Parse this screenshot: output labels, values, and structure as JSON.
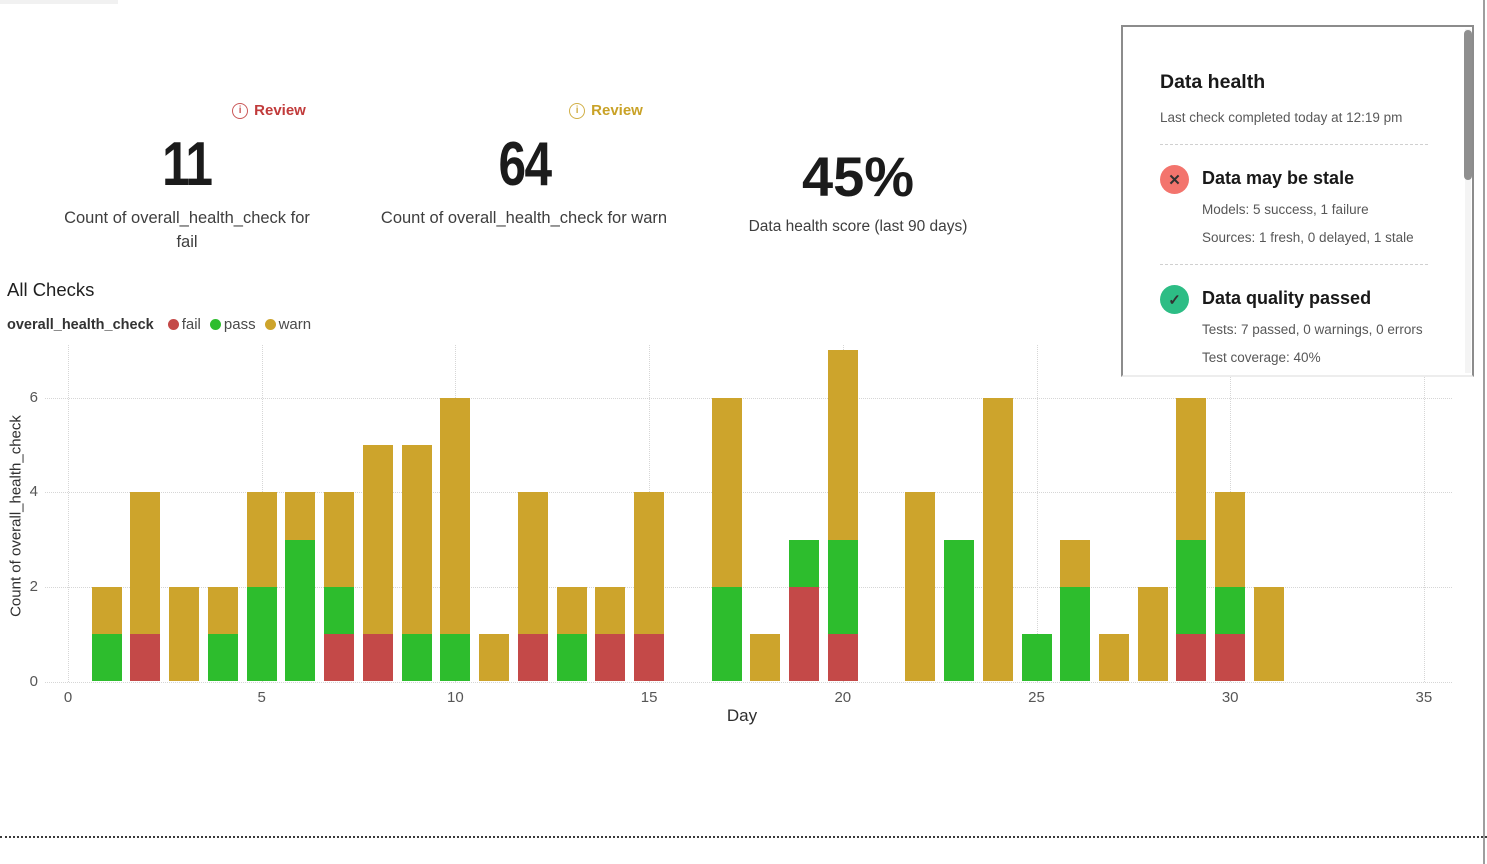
{
  "metrics": [
    {
      "badge_label": "Review",
      "badge_color": "#c13b3b",
      "badge_icon": "info-icon",
      "value": "11",
      "label": "Count of overall_health_check for fail"
    },
    {
      "badge_label": "Review",
      "badge_color": "#c9a227",
      "badge_icon": "info-icon",
      "value": "64",
      "label": "Count of overall_health_check for warn"
    },
    {
      "value": "45%",
      "label": "Data health score (last 90 days)"
    }
  ],
  "all_checks": {
    "title": "All Checks",
    "legend_title": "overall_health_check"
  },
  "legend_items": [
    {
      "label": "fail",
      "color": "#c44948"
    },
    {
      "label": "pass",
      "color": "#2dbd2d"
    },
    {
      "label": "warn",
      "color": "#cda42c"
    }
  ],
  "health_panel": {
    "title": "Data health",
    "subtitle": "Last check completed today at 12:19 pm",
    "sections": [
      {
        "icon": "x-circle-icon",
        "glyph": "✕",
        "color": "#f3746d",
        "heading": "Data may be stale",
        "lines": [
          "Models: 5 success, 1 failure",
          "Sources: 1 fresh, 0 delayed, 1 stale"
        ]
      },
      {
        "icon": "check-circle-icon",
        "glyph": "✓",
        "color": "#2dbd85",
        "heading": "Data quality passed",
        "lines": [
          "Tests: 7 passed, 0 warnings, 0 errors",
          "Test coverage: 40%"
        ]
      }
    ]
  },
  "chart_data": {
    "type": "bar",
    "stacked": true,
    "title": "All Checks",
    "xlabel": "Day",
    "ylabel": "Count of overall_health_check",
    "x": [
      1,
      2,
      3,
      4,
      5,
      6,
      7,
      8,
      9,
      10,
      11,
      12,
      13,
      14,
      15,
      16,
      17,
      18,
      19,
      20,
      21,
      22,
      23,
      24,
      25,
      26,
      27,
      28,
      29,
      30,
      31
    ],
    "series": [
      {
        "name": "fail",
        "color": "#c44948",
        "values": [
          0,
          1,
          0,
          0,
          0,
          0,
          1,
          1,
          0,
          0,
          0,
          1,
          0,
          1,
          1,
          0,
          0,
          0,
          2,
          1,
          0,
          0,
          0,
          0,
          0,
          0,
          0,
          0,
          1,
          1,
          0
        ]
      },
      {
        "name": "pass",
        "color": "#2dbd2d",
        "values": [
          1,
          0,
          0,
          1,
          2,
          3,
          1,
          0,
          1,
          1,
          0,
          0,
          1,
          0,
          0,
          0,
          2,
          0,
          1,
          2,
          0,
          0,
          3,
          0,
          1,
          2,
          0,
          0,
          2,
          1,
          0
        ]
      },
      {
        "name": "warn",
        "color": "#cda42c",
        "values": [
          1,
          3,
          2,
          1,
          2,
          1,
          2,
          4,
          4,
          5,
          1,
          3,
          1,
          1,
          3,
          0,
          4,
          1,
          0,
          4,
          0,
          4,
          0,
          6,
          0,
          1,
          1,
          2,
          3,
          2,
          2
        ]
      }
    ],
    "xticks": [
      0,
      5,
      10,
      15,
      20,
      25,
      30,
      35
    ],
    "yticks": [
      0,
      2,
      4,
      6
    ],
    "xlim": [
      0,
      36
    ],
    "ylim": [
      0,
      7.1
    ],
    "grid": "dotted",
    "legend_position": "top-left"
  }
}
